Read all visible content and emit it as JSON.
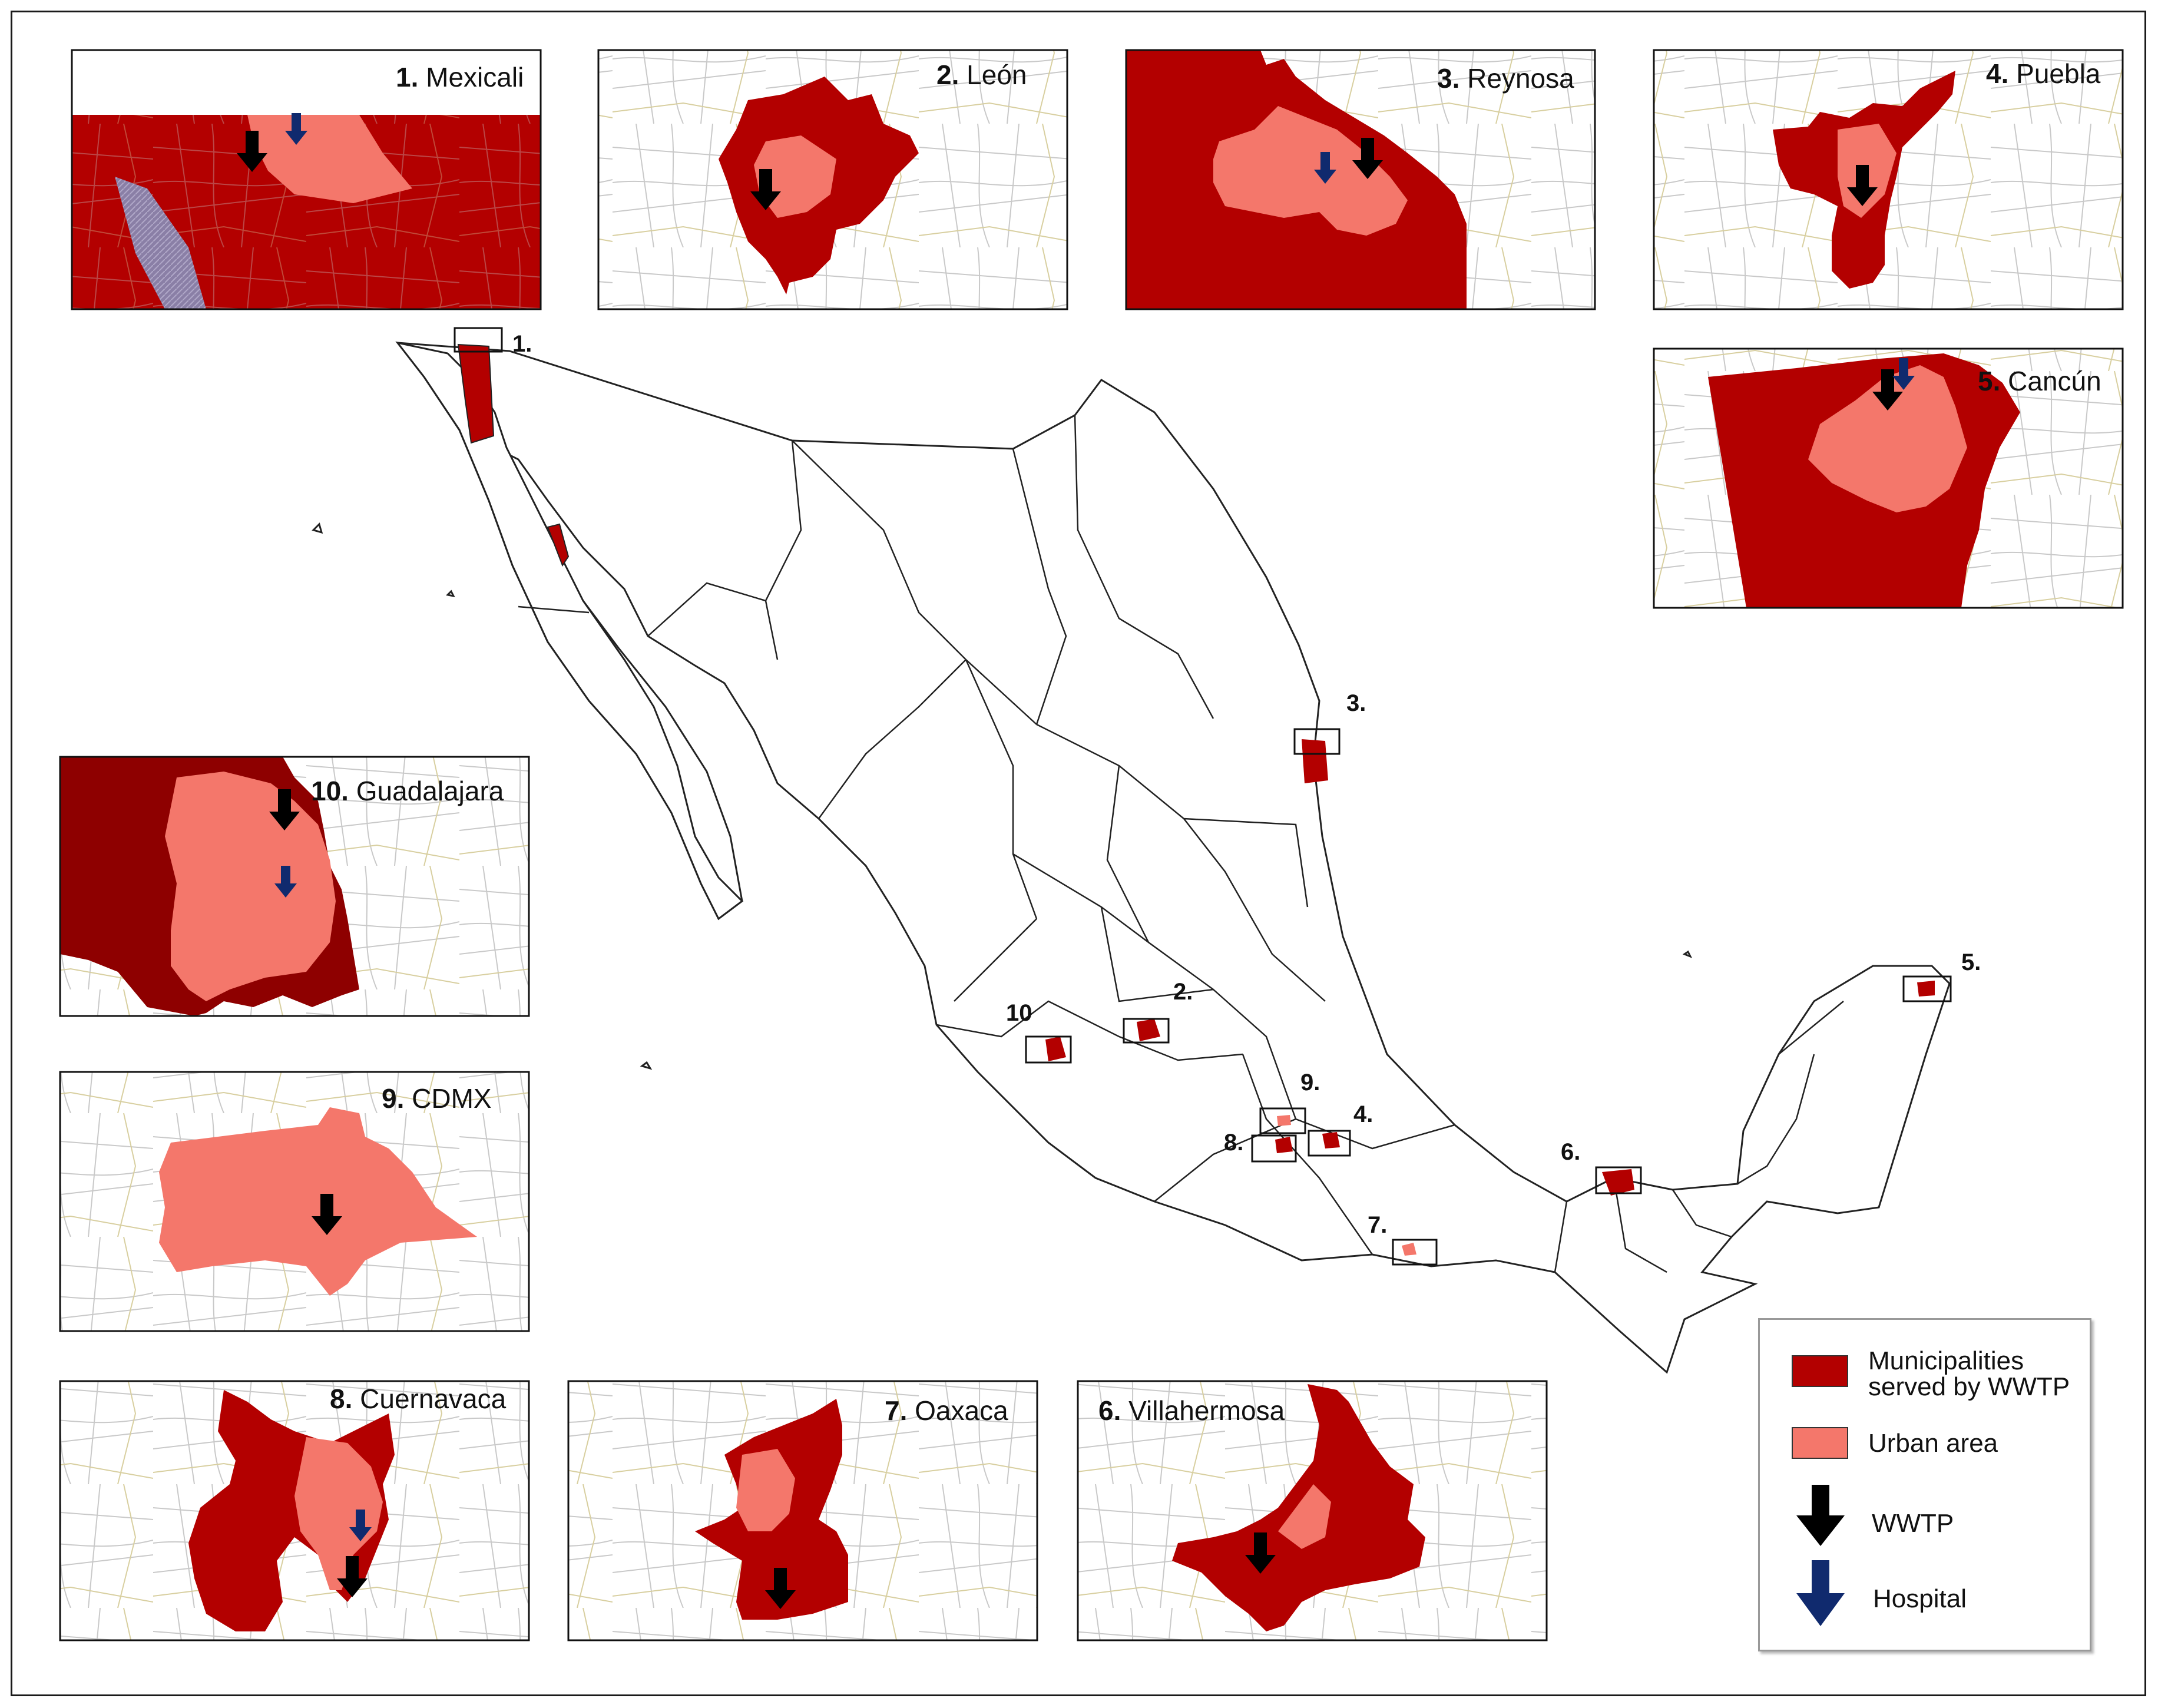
{
  "colors": {
    "municipality": "#B30000",
    "urban": "#F4776B",
    "wwtp_arrow": "#000000",
    "hospital_arrow": "#102A6E",
    "road": "#BFBFBF",
    "border": "#1A1A1A"
  },
  "insets": [
    {
      "num": "1.",
      "name": "Mexicali"
    },
    {
      "num": "2.",
      "name": "León"
    },
    {
      "num": "3.",
      "name": "Reynosa"
    },
    {
      "num": "4.",
      "name": "Puebla"
    },
    {
      "num": "5.",
      "name": "Cancún"
    },
    {
      "num": "6.",
      "name": "Villahermosa"
    },
    {
      "num": "7.",
      "name": "Oaxaca"
    },
    {
      "num": "8.",
      "name": "Cuernavaca"
    },
    {
      "num": "9.",
      "name": "CDMX"
    },
    {
      "num": "10.",
      "name": "Guadalajara"
    }
  ],
  "map_labels": [
    "1.",
    "2.",
    "3.",
    "4.",
    "5.",
    "6.",
    "7.",
    "8.",
    "9.",
    "10"
  ],
  "legend": {
    "municipalities": "Municipalities served by WWTP",
    "urban_area": "Urban area",
    "wwtp": "WWTP",
    "hospital": "Hospital"
  }
}
